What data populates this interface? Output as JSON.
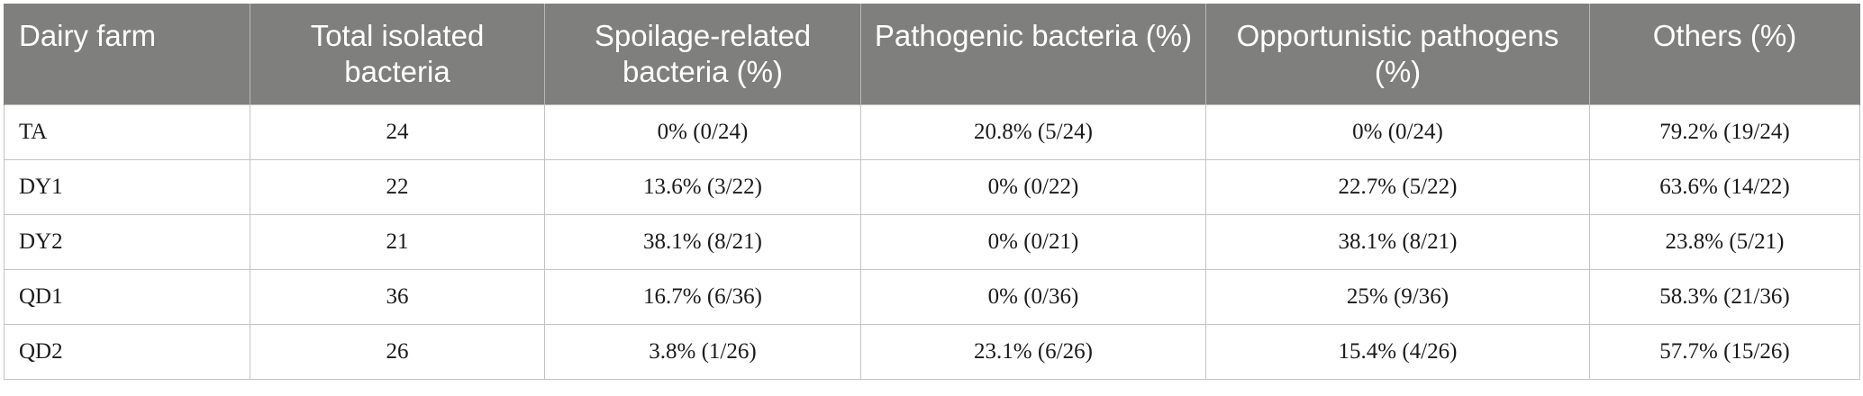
{
  "table": {
    "headers": [
      "Dairy farm",
      "Total isolated bacteria",
      "Spoilage-related bacteria (%)",
      "Pathogenic bacteria (%)",
      "Opportunistic pathogens (%)",
      "Others (%)"
    ],
    "rows": [
      [
        "TA",
        "24",
        "0% (0/24)",
        "20.8% (5/24)",
        "0% (0/24)",
        "79.2% (19/24)"
      ],
      [
        "DY1",
        "22",
        "13.6% (3/22)",
        "0% (0/22)",
        "22.7% (5/22)",
        "63.6% (14/22)"
      ],
      [
        "DY2",
        "21",
        "38.1% (8/21)",
        "0% (0/21)",
        "38.1% (8/21)",
        "23.8% (5/21)"
      ],
      [
        "QD1",
        "36",
        "16.7% (6/36)",
        "0% (0/36)",
        "25% (9/36)",
        "58.3% (21/36)"
      ],
      [
        "QD2",
        "26",
        "3.8% (1/26)",
        "23.1% (6/26)",
        "15.4% (4/26)",
        "57.7% (15/26)"
      ]
    ]
  },
  "colors": {
    "header_bg": "#7f807e",
    "header_text": "#ffffff",
    "grid": "#c4c4c4"
  }
}
